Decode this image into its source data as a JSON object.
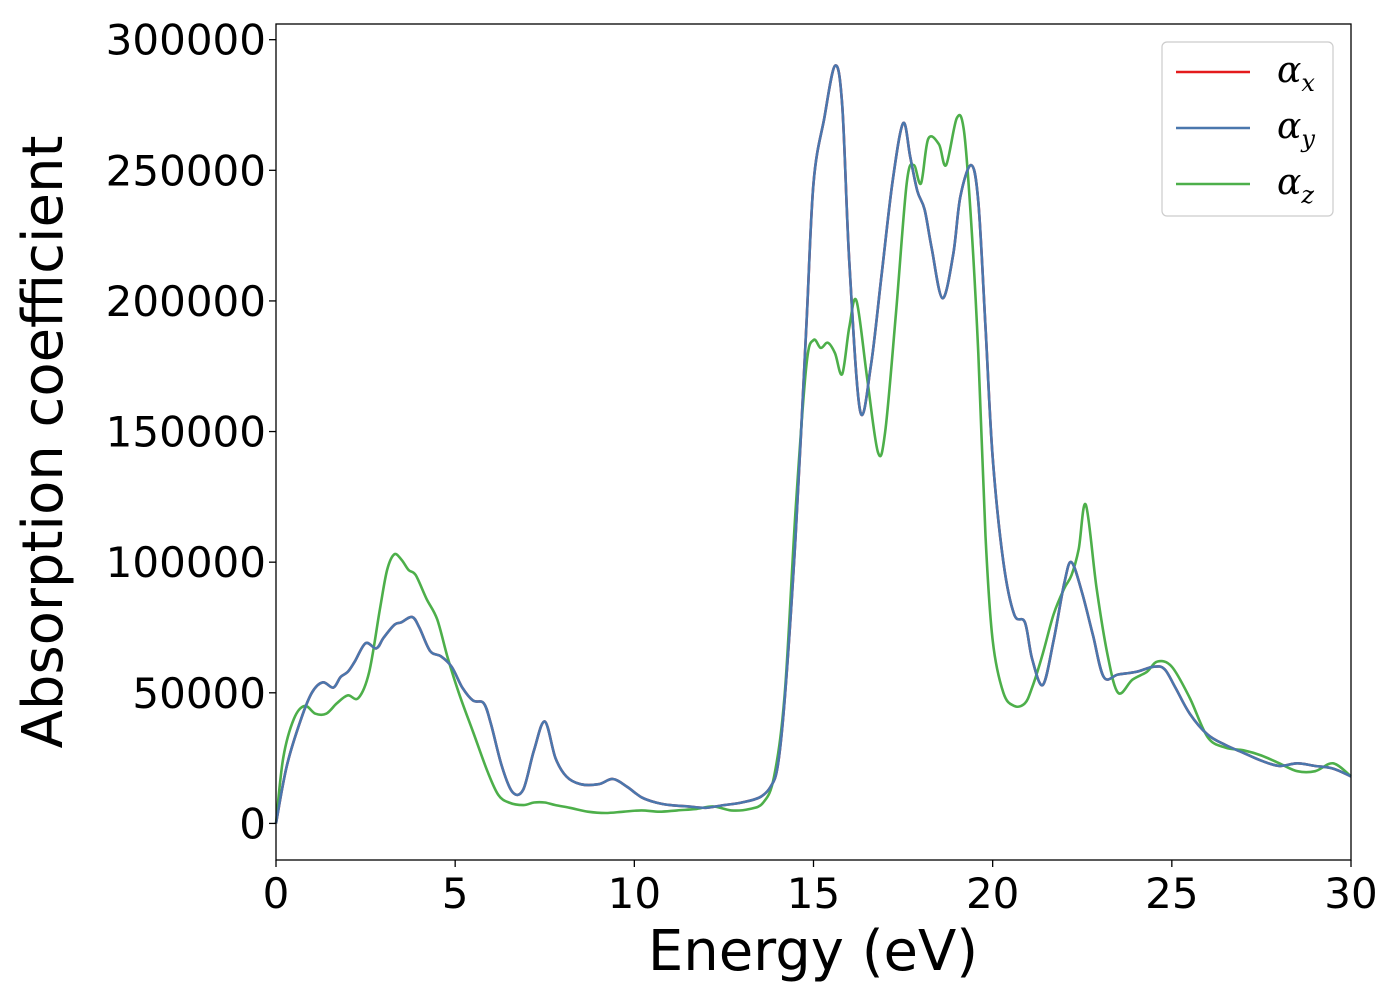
{
  "chart_data": {
    "type": "line",
    "title": "",
    "xlabel": "Energy (eV)",
    "ylabel": "Absorption coefficient",
    "xlim": [
      0,
      30
    ],
    "ylim": [
      -14000,
      306000
    ],
    "xticks": [
      0,
      5,
      10,
      15,
      20,
      25,
      30
    ],
    "yticks": [
      0,
      50000,
      100000,
      150000,
      200000,
      250000,
      300000
    ],
    "grid": false,
    "legend_position": "top-right",
    "series": [
      {
        "name": "α",
        "subscript": "x",
        "color": "#e41a1c",
        "x": [
          0,
          0.3,
          0.7,
          1.0,
          1.3,
          1.6,
          1.8,
          2.0,
          2.2,
          2.5,
          2.8,
          3.0,
          3.3,
          3.5,
          3.8,
          4.0,
          4.3,
          4.6,
          4.9,
          5.2,
          5.5,
          5.8,
          6.0,
          6.3,
          6.6,
          6.9,
          7.2,
          7.5,
          7.8,
          8.1,
          8.5,
          9.0,
          9.4,
          9.8,
          10.2,
          10.6,
          11.0,
          11.5,
          12.0,
          12.5,
          13.0,
          13.5,
          13.8,
          14.0,
          14.2,
          14.5,
          14.8,
          15.0,
          15.3,
          15.6,
          15.8,
          16.0,
          16.3,
          16.6,
          16.9,
          17.2,
          17.5,
          17.7,
          17.9,
          18.1,
          18.3,
          18.6,
          18.9,
          19.1,
          19.4,
          19.6,
          19.8,
          20.0,
          20.3,
          20.6,
          20.9,
          21.1,
          21.4,
          21.7,
          22.0,
          22.2,
          22.5,
          22.8,
          23.1,
          23.5,
          24.0,
          24.5,
          24.8,
          25.1,
          25.5,
          26.0,
          26.5,
          27.0,
          27.5,
          28.0,
          28.5,
          29.0,
          29.5,
          30.0
        ],
        "y": [
          0,
          22000,
          40000,
          50000,
          54000,
          52000,
          56000,
          58000,
          62000,
          69000,
          67000,
          71000,
          76000,
          77000,
          79000,
          75000,
          66000,
          64000,
          60000,
          52000,
          47000,
          46000,
          38000,
          22000,
          12000,
          13000,
          28000,
          39000,
          25000,
          18000,
          15000,
          15000,
          17000,
          14000,
          10000,
          8000,
          7000,
          6500,
          6000,
          7000,
          8000,
          10000,
          14000,
          22000,
          48000,
          110000,
          190000,
          245000,
          270000,
          290000,
          275000,
          215000,
          158000,
          175000,
          210000,
          245000,
          268000,
          255000,
          242000,
          235000,
          220000,
          201000,
          218000,
          240000,
          252000,
          238000,
          190000,
          140000,
          100000,
          80000,
          77000,
          63000,
          53000,
          70000,
          92000,
          100000,
          88000,
          72000,
          56000,
          57000,
          58000,
          60000,
          59000,
          52000,
          42000,
          34000,
          30000,
          27000,
          24000,
          22000,
          23000,
          22000,
          21000,
          18000
        ]
      },
      {
        "name": "α",
        "subscript": "y",
        "color": "#4a77ad",
        "x": [
          0,
          0.3,
          0.7,
          1.0,
          1.3,
          1.6,
          1.8,
          2.0,
          2.2,
          2.5,
          2.8,
          3.0,
          3.3,
          3.5,
          3.8,
          4.0,
          4.3,
          4.6,
          4.9,
          5.2,
          5.5,
          5.8,
          6.0,
          6.3,
          6.6,
          6.9,
          7.2,
          7.5,
          7.8,
          8.1,
          8.5,
          9.0,
          9.4,
          9.8,
          10.2,
          10.6,
          11.0,
          11.5,
          12.0,
          12.5,
          13.0,
          13.5,
          13.8,
          14.0,
          14.2,
          14.5,
          14.8,
          15.0,
          15.3,
          15.6,
          15.8,
          16.0,
          16.3,
          16.6,
          16.9,
          17.2,
          17.5,
          17.7,
          17.9,
          18.1,
          18.3,
          18.6,
          18.9,
          19.1,
          19.4,
          19.6,
          19.8,
          20.0,
          20.3,
          20.6,
          20.9,
          21.1,
          21.4,
          21.7,
          22.0,
          22.2,
          22.5,
          22.8,
          23.1,
          23.5,
          24.0,
          24.5,
          24.8,
          25.1,
          25.5,
          26.0,
          26.5,
          27.0,
          27.5,
          28.0,
          28.5,
          29.0,
          29.5,
          30.0
        ],
        "y": [
          0,
          22000,
          40000,
          50000,
          54000,
          52000,
          56000,
          58000,
          62000,
          69000,
          67000,
          71000,
          76000,
          77000,
          79000,
          75000,
          66000,
          64000,
          60000,
          52000,
          47000,
          46000,
          38000,
          22000,
          12000,
          13000,
          28000,
          39000,
          25000,
          18000,
          15000,
          15000,
          17000,
          14000,
          10000,
          8000,
          7000,
          6500,
          6000,
          7000,
          8000,
          10000,
          14000,
          22000,
          48000,
          110000,
          190000,
          245000,
          270000,
          290000,
          275000,
          215000,
          158000,
          175000,
          210000,
          245000,
          268000,
          255000,
          242000,
          235000,
          220000,
          201000,
          218000,
          240000,
          252000,
          238000,
          190000,
          140000,
          100000,
          80000,
          77000,
          63000,
          53000,
          70000,
          92000,
          100000,
          88000,
          72000,
          56000,
          57000,
          58000,
          60000,
          59000,
          52000,
          42000,
          34000,
          30000,
          27000,
          24000,
          22000,
          23000,
          22000,
          21000,
          18000
        ]
      },
      {
        "name": "α",
        "subscript": "z",
        "color": "#4daf4a",
        "x": [
          0,
          0.2,
          0.5,
          0.8,
          1.1,
          1.4,
          1.7,
          2.0,
          2.3,
          2.6,
          2.9,
          3.1,
          3.3,
          3.5,
          3.7,
          3.9,
          4.2,
          4.5,
          4.8,
          5.1,
          5.5,
          5.9,
          6.2,
          6.5,
          6.9,
          7.2,
          7.5,
          7.8,
          8.2,
          8.7,
          9.2,
          9.7,
          10.2,
          10.7,
          11.2,
          11.7,
          12.2,
          12.7,
          13.2,
          13.6,
          13.9,
          14.2,
          14.5,
          14.8,
          15.0,
          15.2,
          15.4,
          15.6,
          15.8,
          16.0,
          16.2,
          16.5,
          16.8,
          17.0,
          17.3,
          17.6,
          17.8,
          18.0,
          18.2,
          18.5,
          18.7,
          19.0,
          19.2,
          19.4,
          19.6,
          19.8,
          20.0,
          20.3,
          20.6,
          20.9,
          21.1,
          21.4,
          21.7,
          22.0,
          22.2,
          22.4,
          22.6,
          22.9,
          23.2,
          23.5,
          23.9,
          24.3,
          24.6,
          25.0,
          25.5,
          26.0,
          26.5,
          27.0,
          27.5,
          28.0,
          28.5,
          29.0,
          29.5,
          30.0
        ],
        "y": [
          0,
          25000,
          40000,
          45000,
          42000,
          42000,
          46000,
          49000,
          48000,
          58000,
          82000,
          97000,
          103000,
          101000,
          97000,
          95000,
          86000,
          78000,
          63000,
          50000,
          35000,
          20000,
          11000,
          8000,
          7000,
          8000,
          8000,
          7000,
          6000,
          4500,
          4000,
          4500,
          5000,
          4500,
          5000,
          5500,
          6500,
          5000,
          5500,
          8000,
          18000,
          50000,
          120000,
          175000,
          185000,
          182000,
          184000,
          180000,
          172000,
          190000,
          200000,
          170000,
          142000,
          150000,
          195000,
          245000,
          252000,
          245000,
          262000,
          260000,
          252000,
          270000,
          265000,
          230000,
          180000,
          110000,
          70000,
          50000,
          45000,
          46000,
          52000,
          65000,
          80000,
          90000,
          95000,
          105000,
          122000,
          90000,
          65000,
          50000,
          55000,
          58000,
          62000,
          60000,
          48000,
          33000,
          29000,
          28000,
          26000,
          23000,
          20000,
          20000,
          23000,
          18000
        ]
      }
    ]
  }
}
